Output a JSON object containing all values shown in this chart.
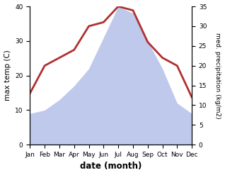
{
  "months": [
    "Jan",
    "Feb",
    "Mar",
    "Apr",
    "May",
    "Jun",
    "Jul",
    "Aug",
    "Sep",
    "Oct",
    "Nov",
    "Dec"
  ],
  "precipitation": [
    9,
    10,
    13,
    17,
    22,
    31,
    40,
    38,
    30,
    22,
    12,
    9
  ],
  "max_temp": [
    13,
    20,
    22,
    24,
    30,
    31,
    35,
    34,
    26,
    22,
    20,
    12
  ],
  "precip_ylim": [
    0,
    40
  ],
  "temp_ylim": [
    0,
    35
  ],
  "precip_yticks": [
    0,
    10,
    20,
    30,
    40
  ],
  "temp_yticks": [
    0,
    5,
    10,
    15,
    20,
    25,
    30,
    35
  ],
  "fill_color": "#b3c0e8",
  "fill_alpha": 0.85,
  "line_color": "#b03030",
  "line_width": 2.0,
  "xlabel": "date (month)",
  "ylabel_left": "max temp (C)",
  "ylabel_right": "med. precipitation (kg/m2)",
  "bg_color": "#ffffff"
}
